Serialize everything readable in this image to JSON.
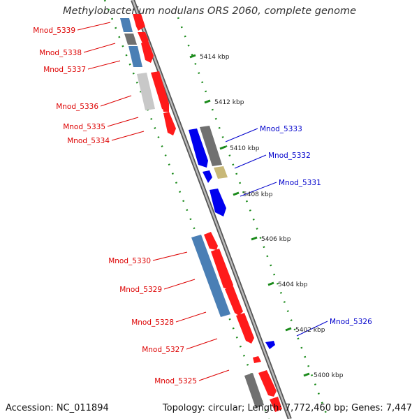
{
  "title": "Methylobacterium nodulans ORS 2060, complete genome",
  "footer": {
    "accession": "Accession: NC_011894",
    "summary": "Topology: circular; Length: 7,772,460 bp; Genes: 7,447"
  },
  "colors": {
    "forward_gene": "#ff0000",
    "reverse_gene": "#0000ee",
    "label_left": "#dd0000",
    "label_right": "#0000cc",
    "tick": "#1a8a1a",
    "backbone": "#777777",
    "blue_steel": "#4a7fb5",
    "gray_dark": "#666666",
    "gray_light": "#c8c8c8",
    "khaki": "#c8b878"
  },
  "kbp_ticks": [
    "5414 kbp",
    "5412 kbp",
    "5410 kbp",
    "5408 kbp",
    "5406 kbp",
    "5404 kbp",
    "5402 kbp",
    "5400 kbp"
  ],
  "genes_left": [
    {
      "label": "Mnod_5339"
    },
    {
      "label": "Mnod_5338"
    },
    {
      "label": "Mnod_5337"
    },
    {
      "label": "Mnod_5336"
    },
    {
      "label": "Mnod_5335"
    },
    {
      "label": "Mnod_5334"
    },
    {
      "label": "Mnod_5330"
    },
    {
      "label": "Mnod_5329"
    },
    {
      "label": "Mnod_5328"
    },
    {
      "label": "Mnod_5327"
    },
    {
      "label": "Mnod_5325"
    }
  ],
  "genes_right": [
    {
      "label": "Mnod_5333"
    },
    {
      "label": "Mnod_5332"
    },
    {
      "label": "Mnod_5331"
    },
    {
      "label": "Mnod_5326"
    }
  ]
}
